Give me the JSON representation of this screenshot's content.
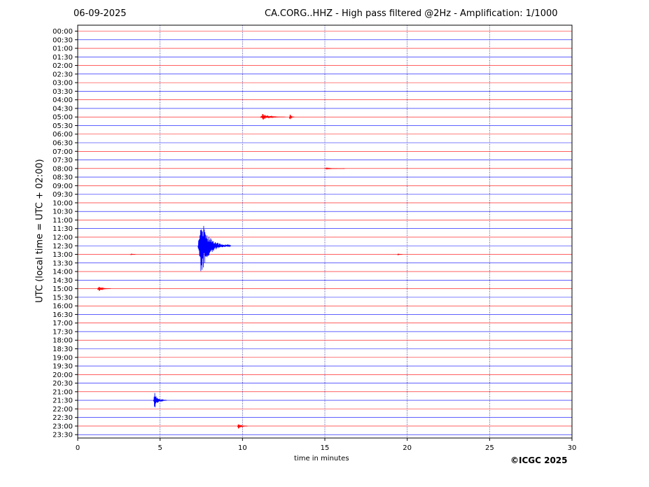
{
  "header": {
    "date": "06-09-2025",
    "title": "CA.CORG..HHZ - High pass filtered @2Hz - Amplification: 1/1000"
  },
  "footer": {
    "copyright": "©ICGC 2025"
  },
  "chart_data": {
    "type": "line",
    "title": "CA.CORG..HHZ - High pass filtered @2Hz - Amplification: 1/1000",
    "xlabel": "time in minutes",
    "ylabel": "UTC (local time = UTC + 02:00)",
    "xlim": [
      0,
      30
    ],
    "x_ticks": [
      "0",
      "5",
      "10",
      "15",
      "20",
      "25",
      "30"
    ],
    "row_labels": [
      "00:00",
      "00:30",
      "01:00",
      "01:30",
      "02:00",
      "02:30",
      "03:00",
      "03:30",
      "04:00",
      "04:30",
      "05:00",
      "05:30",
      "06:00",
      "06:30",
      "07:00",
      "07:30",
      "08:00",
      "08:30",
      "09:00",
      "09:30",
      "10:00",
      "10:30",
      "11:00",
      "11:30",
      "12:00",
      "12:30",
      "13:00",
      "13:30",
      "14:00",
      "14:30",
      "15:00",
      "15:30",
      "16:00",
      "16:30",
      "17:00",
      "17:30",
      "18:00",
      "18:30",
      "19:00",
      "19:30",
      "20:00",
      "20:30",
      "21:00",
      "21:30",
      "22:00",
      "22:30",
      "23:00",
      "23:30"
    ],
    "trace_colors": [
      "#ff0000",
      "#0000ff"
    ],
    "vertical_grid": true,
    "events": [
      {
        "row": "05:00",
        "x": 11.1,
        "amplitude": 0.4,
        "duration": 1.5
      },
      {
        "row": "05:00",
        "x": 12.85,
        "amplitude": 0.45,
        "duration": 0.3
      },
      {
        "row": "08:00",
        "x": 15.0,
        "amplitude": 0.08,
        "duration": 1.2
      },
      {
        "row": "12:30",
        "x": 7.3,
        "amplitude": 3.7,
        "duration": 2.0
      },
      {
        "row": "13:00",
        "x": 3.2,
        "amplitude": 0.1,
        "duration": 0.3
      },
      {
        "row": "13:00",
        "x": 19.4,
        "amplitude": 0.1,
        "duration": 0.3
      },
      {
        "row": "15:00",
        "x": 1.2,
        "amplitude": 0.35,
        "duration": 0.8
      },
      {
        "row": "21:30",
        "x": 4.6,
        "amplitude": 1.0,
        "duration": 0.8
      },
      {
        "row": "23:00",
        "x": 9.7,
        "amplitude": 0.45,
        "duration": 0.6
      }
    ]
  }
}
